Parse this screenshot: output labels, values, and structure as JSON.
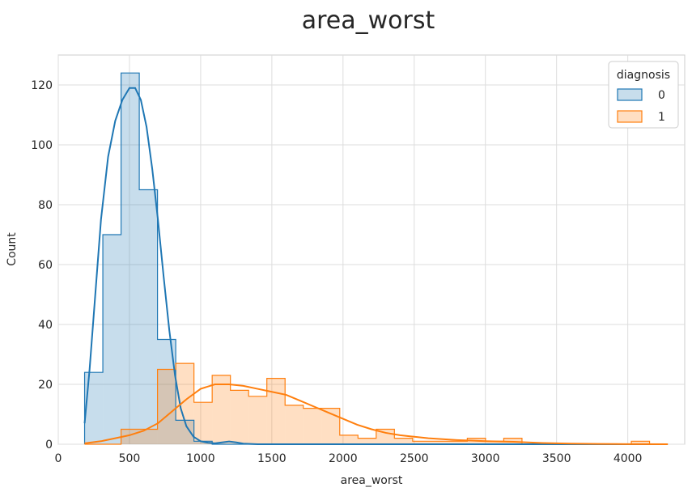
{
  "chart_data": {
    "type": "histogram",
    "title": "area_worst",
    "xlabel": "area_worst",
    "ylabel": "Count",
    "xlim": [
      0,
      4400
    ],
    "ylim": [
      0,
      130
    ],
    "x_ticks": [
      0,
      500,
      1000,
      1500,
      2000,
      2500,
      3000,
      3500,
      4000
    ],
    "y_ticks": [
      0,
      20,
      40,
      60,
      80,
      100,
      120
    ],
    "grid": true,
    "legend": {
      "title": "diagnosis",
      "placement": "top-right"
    },
    "bin_edges": [
      185,
      441,
      697,
      953,
      1209,
      1465,
      1721,
      1977,
      2233,
      2489,
      2745,
      3001,
      3257,
      3513,
      3769,
      4025,
      4281
    ],
    "bin_edges_fine": [
      185,
      313,
      441,
      569,
      697,
      825,
      953,
      1081,
      1209,
      1337,
      1465,
      1593,
      1721,
      1849,
      1977,
      2105,
      2233,
      2361,
      2489,
      2617,
      2745,
      2873,
      3001,
      3129,
      3257,
      3385,
      3513,
      3641,
      3769,
      3897,
      4025,
      4153,
      4281
    ],
    "series": [
      {
        "name": "0",
        "color": "#1f77b4",
        "counts": [
          24,
          70,
          124,
          85,
          35,
          8,
          1,
          0,
          0,
          0,
          0,
          0,
          0,
          0,
          0,
          0,
          0,
          0,
          0,
          0,
          0,
          0,
          0,
          0,
          0,
          0,
          0,
          0,
          0,
          0,
          0,
          0
        ],
        "kde": [
          [
            185,
            7
          ],
          [
            220,
            25
          ],
          [
            260,
            50
          ],
          [
            300,
            75
          ],
          [
            350,
            96
          ],
          [
            400,
            108
          ],
          [
            450,
            115
          ],
          [
            500,
            119
          ],
          [
            540,
            119
          ],
          [
            580,
            115
          ],
          [
            620,
            106
          ],
          [
            660,
            92
          ],
          [
            700,
            75
          ],
          [
            740,
            56
          ],
          [
            780,
            38
          ],
          [
            820,
            23
          ],
          [
            860,
            12
          ],
          [
            900,
            6
          ],
          [
            950,
            2.5
          ],
          [
            1000,
            1
          ],
          [
            1050,
            0.5
          ],
          [
            1100,
            0.3
          ],
          [
            1150,
            0.6
          ],
          [
            1200,
            0.9
          ],
          [
            1250,
            0.6
          ],
          [
            1300,
            0.2
          ],
          [
            1400,
            0
          ],
          [
            4281,
            0
          ]
        ]
      },
      {
        "name": "1",
        "color": "#ff7f0e",
        "counts": [
          0,
          0,
          5,
          5,
          25,
          27,
          14,
          23,
          18,
          16,
          22,
          13,
          12,
          12,
          3,
          2,
          5,
          2,
          1,
          1,
          1,
          2,
          1,
          2,
          0,
          0,
          0,
          0,
          0,
          0,
          1,
          0
        ],
        "kde": [
          [
            185,
            0.3
          ],
          [
            300,
            1
          ],
          [
            400,
            2
          ],
          [
            500,
            3
          ],
          [
            600,
            4.5
          ],
          [
            700,
            7
          ],
          [
            800,
            11
          ],
          [
            900,
            15
          ],
          [
            1000,
            18.5
          ],
          [
            1100,
            20
          ],
          [
            1200,
            20
          ],
          [
            1300,
            19.5
          ],
          [
            1400,
            18.5
          ],
          [
            1500,
            17.5
          ],
          [
            1600,
            16.5
          ],
          [
            1700,
            14.5
          ],
          [
            1800,
            12.5
          ],
          [
            1900,
            10.5
          ],
          [
            2000,
            8.5
          ],
          [
            2100,
            6.5
          ],
          [
            2200,
            5
          ],
          [
            2300,
            3.8
          ],
          [
            2400,
            3
          ],
          [
            2500,
            2.5
          ],
          [
            2600,
            2
          ],
          [
            2700,
            1.7
          ],
          [
            2800,
            1.4
          ],
          [
            2900,
            1.2
          ],
          [
            3000,
            1
          ],
          [
            3100,
            0.9
          ],
          [
            3200,
            0.8
          ],
          [
            3300,
            0.6
          ],
          [
            3400,
            0.4
          ],
          [
            3600,
            0.2
          ],
          [
            3800,
            0.1
          ],
          [
            4000,
            0.05
          ],
          [
            4281,
            0
          ]
        ]
      }
    ]
  }
}
